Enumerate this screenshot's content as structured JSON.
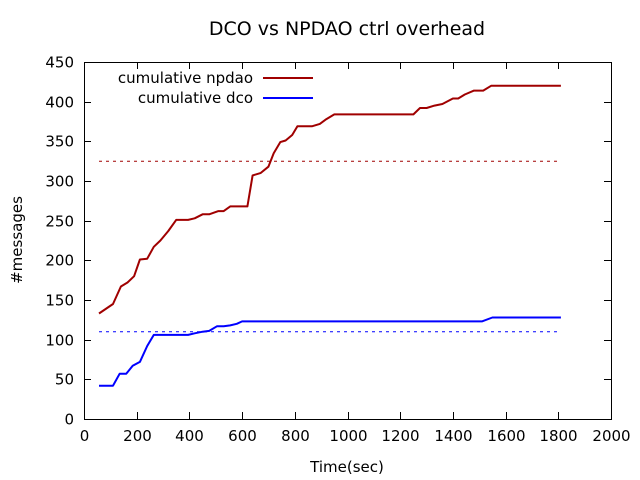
{
  "chart_data": {
    "type": "line",
    "title": "DCO vs NPDAO ctrl overhead",
    "xlabel": "Time(sec)",
    "ylabel": "#messages",
    "xlim": [
      0,
      2000
    ],
    "ylim": [
      0,
      450
    ],
    "xticks": [
      0,
      200,
      400,
      600,
      800,
      1000,
      1200,
      1400,
      1600,
      1800,
      2000
    ],
    "yticks": [
      0,
      50,
      100,
      150,
      200,
      250,
      300,
      350,
      400,
      450
    ],
    "grid": false,
    "legend_position": "top-left",
    "series": [
      {
        "name": "cumulative npdao",
        "color": "#a00000",
        "style": "solid",
        "x": [
          57,
          110,
          140,
          165,
          190,
          212,
          240,
          265,
          290,
          320,
          350,
          395,
          420,
          450,
          475,
          510,
          530,
          555,
          580,
          620,
          640,
          670,
          700,
          720,
          745,
          765,
          790,
          810,
          835,
          865,
          895,
          920,
          950,
          975,
          1000,
          1030,
          1060,
          1100,
          1150,
          1200,
          1250,
          1275,
          1300,
          1330,
          1360,
          1400,
          1420,
          1445,
          1480,
          1515,
          1545,
          1575,
          1600,
          1700,
          1810
        ],
        "values": [
          133,
          145,
          167,
          172,
          180,
          201,
          202,
          217,
          225,
          237,
          251,
          251,
          253,
          258,
          258,
          262,
          262,
          268,
          268,
          268,
          307,
          310,
          318,
          335,
          349,
          351,
          358,
          369,
          369,
          369,
          372,
          378,
          384,
          384,
          384,
          384,
          384,
          384,
          384,
          384,
          384,
          392,
          392,
          395,
          397,
          404,
          404,
          409,
          414,
          414,
          420,
          420,
          420,
          420,
          420
        ]
      },
      {
        "name": "cumulative dco",
        "color": "#0000ff",
        "style": "solid",
        "x": [
          57,
          110,
          135,
          160,
          185,
          212,
          240,
          265,
          290,
          320,
          350,
          395,
          420,
          450,
          475,
          505,
          530,
          555,
          580,
          600,
          1200,
          1510,
          1550,
          1600,
          1810
        ],
        "values": [
          42,
          42,
          57,
          57,
          67,
          72,
          92,
          106,
          106,
          106,
          106,
          106,
          108,
          110,
          111,
          117,
          117,
          118,
          120,
          123,
          123,
          123,
          128,
          128,
          128
        ]
      },
      {
        "name": "",
        "color": "#a00000",
        "style": "dashed",
        "x": [
          57,
          1810
        ],
        "values": [
          325,
          325
        ]
      },
      {
        "name": "",
        "color": "#0000ff",
        "style": "dashed",
        "x": [
          57,
          1810
        ],
        "values": [
          110,
          110
        ]
      }
    ],
    "legend": [
      {
        "label": "cumulative npdao",
        "color": "#a00000"
      },
      {
        "label": "cumulative dco",
        "color": "#0000ff"
      }
    ]
  }
}
